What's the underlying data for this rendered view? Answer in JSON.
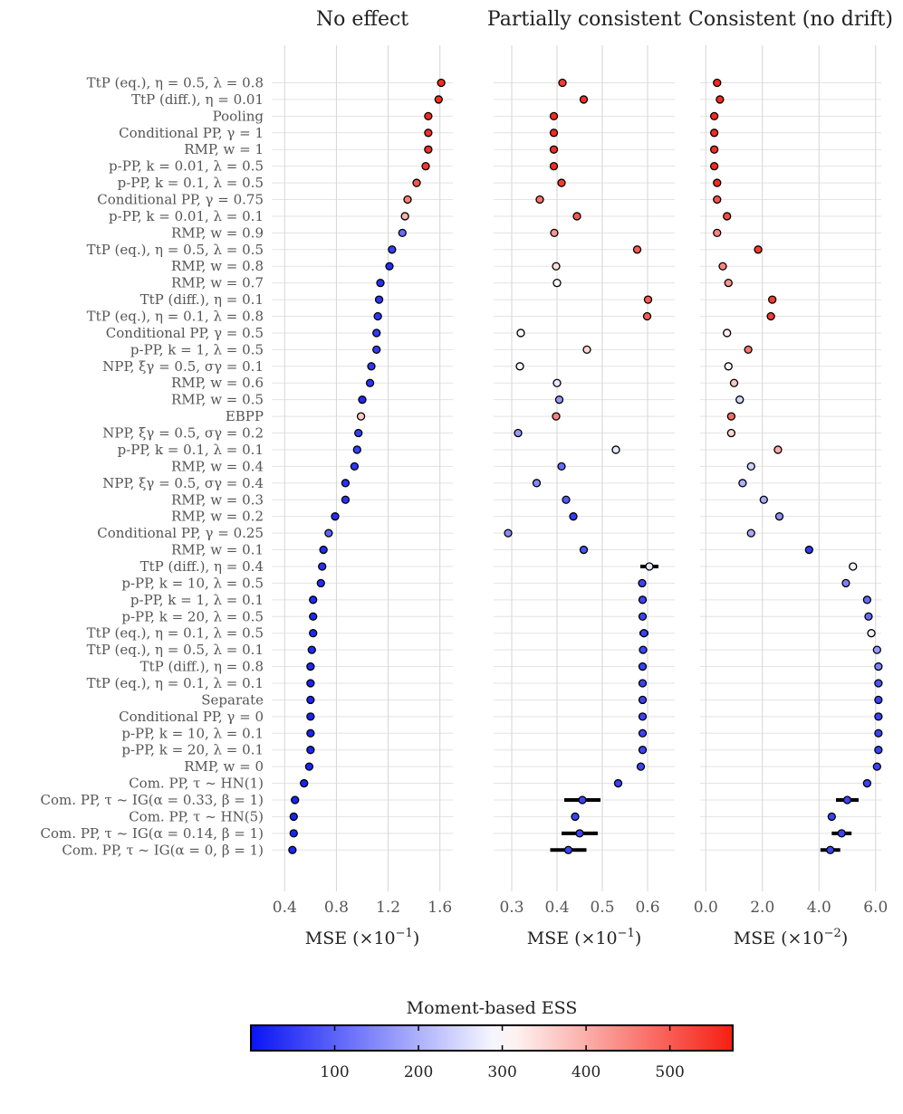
{
  "chart_data": {
    "type": "scatter",
    "rows": [
      "TtP (eq.), η = 0.5, λ = 0.8",
      "TtP (diff.), η = 0.01",
      "Pooling",
      "Conditional PP, γ = 1",
      "RMP, w = 1",
      "p-PP, k = 0.01, λ = 0.5",
      "p-PP, k = 0.1, λ = 0.5",
      "Conditional PP, γ = 0.75",
      "p-PP, k = 0.01, λ = 0.1",
      "RMP, w = 0.9",
      "TtP (eq.), η = 0.5, λ = 0.5",
      "RMP, w = 0.8",
      "RMP, w = 0.7",
      "TtP (diff.), η = 0.1",
      "TtP (eq.), η = 0.1, λ = 0.8",
      "Conditional PP, γ = 0.5",
      "p-PP, k = 1, λ = 0.5",
      "NPP, ξγ = 0.5, σγ = 0.1",
      "RMP, w = 0.6",
      "RMP, w = 0.5",
      "EBPP",
      "NPP, ξγ = 0.5, σγ = 0.2",
      "p-PP, k = 0.1, λ = 0.1",
      "RMP, w = 0.4",
      "NPP, ξγ = 0.5, σγ = 0.4",
      "RMP, w = 0.3",
      "RMP, w = 0.2",
      "Conditional PP, γ = 0.25",
      "RMP, w = 0.1",
      "TtP (diff.), η = 0.4",
      "p-PP, k = 10, λ = 0.5",
      "p-PP, k = 1, λ = 0.1",
      "p-PP, k = 20, λ = 0.5",
      "TtP (eq.), η = 0.1, λ = 0.5",
      "TtP (eq.), η = 0.5, λ = 0.1",
      "TtP (diff.), η = 0.8",
      "TtP (eq.), η = 0.1, λ = 0.1",
      "Separate",
      "Conditional PP, γ = 0",
      "p-PP, k = 10, λ = 0.1",
      "p-PP, k = 20, λ = 0.1",
      "RMP, w = 0",
      "Com. PP, τ ~ HN(1)",
      "Com. PP, τ ~ IG(α = 0.33, β = 1)",
      "Com. PP, τ ~ HN(5)",
      "Com. PP, τ ~ IG(α = 0.14, β = 1)",
      "Com. PP, τ ~ IG(α = 0, β = 1)"
    ],
    "panels": [
      {
        "title": "No effect",
        "xlabel": "MSE (×10",
        "xlabel_exp": "−1",
        "xlim": [
          0.3,
          1.7
        ],
        "ticks": [
          0.4,
          0.8,
          1.2,
          1.6
        ],
        "tick_labels": [
          "0.4",
          "0.8",
          "1.2",
          "1.6"
        ],
        "x": [
          1.61,
          1.59,
          1.51,
          1.51,
          1.51,
          1.49,
          1.42,
          1.35,
          1.33,
          1.31,
          1.23,
          1.21,
          1.14,
          1.13,
          1.12,
          1.11,
          1.11,
          1.07,
          1.06,
          1.0,
          0.99,
          0.97,
          0.96,
          0.94,
          0.87,
          0.87,
          0.79,
          0.74,
          0.7,
          0.69,
          0.68,
          0.62,
          0.62,
          0.62,
          0.61,
          0.6,
          0.6,
          0.6,
          0.6,
          0.6,
          0.6,
          0.59,
          0.55,
          0.48,
          0.47,
          0.47,
          0.46
        ],
        "err": [
          0,
          0,
          0,
          0,
          0,
          0,
          0,
          0,
          0,
          0,
          0,
          0,
          0,
          0,
          0,
          0,
          0,
          0,
          0,
          0,
          0,
          0,
          0,
          0,
          0,
          0,
          0,
          0,
          0,
          0,
          0,
          0,
          0,
          0,
          0,
          0,
          0,
          0,
          0,
          0,
          0,
          0,
          0,
          0.02,
          0,
          0.02,
          0.02
        ],
        "ess": [
          560,
          555,
          560,
          555,
          555,
          545,
          505,
          455,
          395,
          110,
          55,
          30,
          35,
          40,
          45,
          50,
          50,
          45,
          40,
          25,
          365,
          50,
          55,
          45,
          40,
          40,
          35,
          100,
          30,
          35,
          30,
          25,
          25,
          25,
          25,
          25,
          20,
          20,
          20,
          20,
          20,
          20,
          20,
          20,
          20,
          20,
          20
        ]
      },
      {
        "title": "Partially consistent",
        "xlabel": "MSE (×10",
        "xlabel_exp": "−1",
        "xlim": [
          0.26,
          0.66
        ],
        "ticks": [
          0.3,
          0.4,
          0.5,
          0.6
        ],
        "tick_labels": [
          "0.3",
          "0.4",
          "0.5",
          "0.6"
        ],
        "x": [
          0.412,
          0.459,
          0.393,
          0.393,
          0.393,
          0.393,
          0.41,
          0.362,
          0.444,
          0.394,
          0.577,
          0.398,
          0.4,
          0.601,
          0.599,
          0.32,
          0.466,
          0.318,
          0.4,
          0.405,
          0.398,
          0.314,
          0.53,
          0.41,
          0.355,
          0.42,
          0.436,
          0.292,
          0.459,
          0.604,
          0.588,
          0.589,
          0.589,
          0.592,
          0.59,
          0.589,
          0.589,
          0.589,
          0.589,
          0.589,
          0.589,
          0.585,
          0.535,
          0.456,
          0.44,
          0.45,
          0.425
        ],
        "err": [
          0,
          0,
          0,
          0,
          0,
          0,
          0,
          0,
          0,
          0,
          0,
          0,
          0,
          0,
          0,
          0,
          0,
          0,
          0,
          0,
          0,
          0,
          0,
          0,
          0,
          0,
          0,
          0,
          0,
          0.02,
          0.008,
          0.008,
          0.008,
          0.01,
          0.008,
          0.008,
          0.008,
          0.008,
          0.008,
          0.008,
          0.008,
          0.008,
          0.008,
          0.04,
          0.006,
          0.04,
          0.04
        ],
        "ess": [
          540,
          550,
          560,
          560,
          560,
          560,
          540,
          470,
          500,
          430,
          500,
          340,
          300,
          500,
          500,
          290,
          350,
          290,
          270,
          170,
          450,
          170,
          270,
          110,
          150,
          90,
          50,
          150,
          80,
          270,
          60,
          60,
          60,
          60,
          60,
          60,
          60,
          60,
          60,
          60,
          60,
          60,
          60,
          60,
          60,
          60,
          60
        ]
      },
      {
        "title": "Consistent (no drift)",
        "xlabel": "MSE (×10",
        "xlabel_exp": "−2",
        "xlim": [
          -0.2,
          6.2
        ],
        "ticks": [
          0.0,
          2.0,
          4.0,
          6.0
        ],
        "tick_labels": [
          "0.0",
          "2.0",
          "4.0",
          "6.0"
        ],
        "x": [
          0.4,
          0.5,
          0.3,
          0.3,
          0.3,
          0.3,
          0.4,
          0.4,
          0.75,
          0.4,
          1.85,
          0.6,
          0.8,
          2.35,
          2.3,
          0.75,
          1.5,
          0.8,
          1.0,
          1.2,
          0.9,
          0.9,
          2.55,
          1.6,
          1.3,
          2.05,
          2.6,
          1.6,
          3.65,
          5.2,
          4.95,
          5.7,
          5.75,
          5.85,
          6.05,
          6.1,
          6.1,
          6.1,
          6.1,
          6.1,
          6.1,
          6.05,
          5.7,
          5.0,
          4.45,
          4.8,
          4.4
        ],
        "err": [
          0,
          0,
          0,
          0,
          0,
          0,
          0,
          0,
          0,
          0,
          0,
          0,
          0,
          0,
          0,
          0,
          0,
          0,
          0,
          0,
          0,
          0,
          0,
          0,
          0,
          0,
          0,
          0,
          0,
          0.1,
          0.1,
          0.1,
          0.1,
          0.1,
          0.1,
          0.1,
          0.1,
          0.1,
          0.1,
          0.1,
          0.1,
          0.1,
          0.1,
          0.4,
          0,
          0.35,
          0.35
        ],
        "ess": [
          560,
          560,
          560,
          560,
          560,
          560,
          560,
          510,
          520,
          450,
          540,
          450,
          430,
          540,
          540,
          320,
          470,
          310,
          370,
          250,
          480,
          350,
          400,
          240,
          200,
          190,
          160,
          190,
          50,
          280,
          140,
          110,
          110,
          280,
          170,
          140,
          80,
          60,
          60,
          60,
          60,
          60,
          60,
          60,
          60,
          60,
          60
        ]
      }
    ],
    "colorbar": {
      "title": "Moment-based ESS",
      "min": 0,
      "max": 575,
      "center": 300,
      "ticks": [
        100,
        200,
        300,
        400,
        500
      ],
      "tick_labels": [
        "100",
        "200",
        "300",
        "400",
        "500"
      ],
      "colors": {
        "low": "#0a14f5",
        "mid": "#ffffff",
        "high": "#f51e12"
      }
    },
    "grid": true
  }
}
